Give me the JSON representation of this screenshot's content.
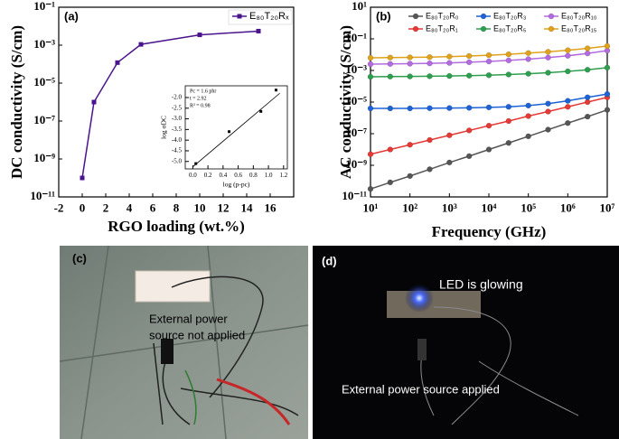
{
  "chart_data": [
    {
      "type": "line",
      "panel": "(a)",
      "x_label": "RGO loading (wt.%)",
      "y_label": "DC conductivity (S/cm)",
      "ylog": true,
      "xlim": [
        -2,
        18
      ],
      "ylim": [
        1e-11,
        0.1
      ],
      "xticks": [
        -2,
        0,
        2,
        4,
        6,
        8,
        10,
        12,
        14,
        16
      ],
      "yticks": [
        {
          "value": 1e-11,
          "label": "10⁻¹¹"
        },
        {
          "value": 1e-09,
          "label": "10⁻⁹"
        },
        {
          "value": 1e-07,
          "label": "10⁻⁷"
        },
        {
          "value": 1e-05,
          "label": "10⁻⁵"
        },
        {
          "value": 0.001,
          "label": "10⁻³"
        },
        {
          "value": 0.1,
          "label": "10⁻¹"
        }
      ],
      "x": [
        0,
        1,
        3,
        5,
        10,
        15
      ],
      "marker": "square",
      "legend": "upper right",
      "series": [
        {
          "name": "E₈₀T₂₀Rₓ",
          "color": "#4a148c",
          "values": [
            1e-10,
            1e-06,
            0.00012,
            0.0011,
            0.0035,
            0.0055
          ]
        }
      ]
    },
    {
      "type": "scatter",
      "x_label": "log (p-pc)",
      "y_label": "log σDC",
      "annotations": [
        "Pc = 1.6 phr",
        "t = 2.92",
        "R² = 0.98"
      ],
      "xlim": [
        -0.1,
        1.25
      ],
      "ylim": [
        -5.35,
        -1.45
      ],
      "xticks": [
        {
          "value": 0,
          "label": "0.0"
        },
        {
          "value": 0.2,
          "label": "0.2"
        },
        {
          "value": 0.4,
          "label": "0.4"
        },
        {
          "value": 0.6,
          "label": "0.6"
        },
        {
          "value": 0.8,
          "label": "0.8"
        },
        {
          "value": 1,
          "label": "1.0"
        },
        {
          "value": 1.2,
          "label": "1.2"
        }
      ],
      "yticks": [
        {
          "value": -5,
          "label": "-5.0"
        },
        -4.5,
        {
          "value": -4,
          "label": "-4.0"
        },
        -3.5,
        {
          "value": -3,
          "label": "-3.0"
        },
        -2.5,
        {
          "value": -2,
          "label": "-2.0"
        }
      ],
      "x": [
        0.04,
        0.48,
        0.9,
        1.1
      ],
      "marker": "square",
      "series": [
        {
          "color": "#000000",
          "values": [
            -5.1,
            -3.6,
            -2.65,
            -1.65
          ]
        }
      ],
      "fit": {
        "x": [
          0,
          1.15
        ],
        "y": [
          -5.25,
          -1.8
        ]
      }
    },
    {
      "type": "line",
      "panel": "(b)",
      "x_label": "Frequency (GHz)",
      "y_label": "AC conductivity (S/cm)",
      "xlog": true,
      "ylog": true,
      "xlim": [
        10,
        10000000
      ],
      "ylim": [
        1e-11,
        10
      ],
      "xticks": [
        {
          "value": 10,
          "label": "10¹"
        },
        {
          "value": 100,
          "label": "10²"
        },
        {
          "value": 1000,
          "label": "10³"
        },
        {
          "value": 10000,
          "label": "10⁴"
        },
        {
          "value": 100000,
          "label": "10⁵"
        },
        {
          "value": 1000000,
          "label": "10⁶"
        },
        {
          "value": 10000000,
          "label": "10⁷"
        }
      ],
      "yticks": [
        {
          "value": 1e-11,
          "label": "10⁻¹¹"
        },
        {
          "value": 1e-09,
          "label": "10⁻⁹"
        },
        {
          "value": 1e-07,
          "label": "10⁻⁷"
        },
        {
          "value": 1e-05,
          "label": "10⁻⁵"
        },
        {
          "value": 0.001,
          "label": "10⁻³"
        },
        {
          "value": 0.1,
          "label": "10⁻¹"
        },
        {
          "value": 10,
          "label": "10¹"
        }
      ],
      "x": [
        10,
        31.6,
        100,
        316,
        1000,
        3162,
        10000,
        31623,
        100000,
        316228,
        1000000,
        3162278,
        10000000
      ],
      "marker": "circle",
      "legend": "upper center",
      "legend_columns": 3,
      "series": [
        {
          "name": "E₈₀T₂₀R₀",
          "color": "#555555",
          "values": [
            3.2e-11,
            8.3e-11,
            2.1e-10,
            5.6e-10,
            1.5e-09,
            3.8e-09,
            1e-08,
            2.6e-08,
            6.8e-08,
            1.8e-07,
            4.7e-07,
            1.2e-06,
            3.2e-06
          ]
        },
        {
          "name": "E₈₀T₂₀R₁",
          "color": "#e53935",
          "values": [
            5e-09,
            1e-08,
            2e-08,
            4e-08,
            7.9e-08,
            1.6e-07,
            3.2e-07,
            6.3e-07,
            1.3e-06,
            2.5e-06,
            5e-06,
            1e-05,
            2e-05
          ]
        },
        {
          "name": "E₈₀T₂₀R₃",
          "color": "#1e63d6",
          "values": [
            4e-06,
            4e-06,
            4e-06,
            4.1e-06,
            4.2e-06,
            4.3e-06,
            4.6e-06,
            5e-06,
            6e-06,
            8e-06,
            1.2e-05,
            2e-05,
            3.2e-05
          ]
        },
        {
          "name": "E₈₀T₂₀R₅",
          "color": "#2e9e4f",
          "values": [
            0.0004,
            0.00041,
            0.00042,
            0.00043,
            0.00045,
            0.00047,
            0.0005,
            0.00055,
            0.00062,
            0.00072,
            0.00088,
            0.0011,
            0.0015
          ]
        },
        {
          "name": "E₈₀T₂₀R₁₀",
          "color": "#b36be0",
          "values": [
            0.0025,
            0.0026,
            0.0027,
            0.0028,
            0.003,
            0.0033,
            0.0037,
            0.0043,
            0.0052,
            0.0065,
            0.0085,
            0.012,
            0.018
          ]
        },
        {
          "name": "E₈₀T₂₀R₁₅",
          "color": "#e0a21b",
          "values": [
            0.0063,
            0.0065,
            0.0067,
            0.007,
            0.0075,
            0.0082,
            0.0092,
            0.0105,
            0.0125,
            0.015,
            0.019,
            0.025,
            0.035
          ]
        }
      ]
    }
  ],
  "photos": [
    {
      "label": "(c)",
      "caption": [
        "External power",
        "source not applied"
      ]
    },
    {
      "label": "(d)",
      "annotations": [
        "LED is glowing",
        "External power source applied"
      ]
    }
  ]
}
